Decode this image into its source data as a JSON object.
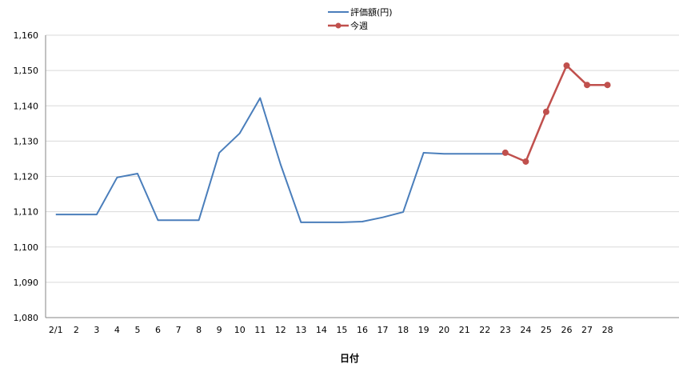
{
  "chart_data": {
    "type": "line",
    "title": "",
    "xlabel": "日付",
    "ylabel": "",
    "ylim": [
      1080,
      1160
    ],
    "ytick_step": 10,
    "grid": "horizontal",
    "legend_placement": "top-center",
    "categories": [
      "2/1",
      "2",
      "3",
      "4",
      "5",
      "6",
      "7",
      "8",
      "9",
      "10",
      "11",
      "12",
      "13",
      "14",
      "15",
      "16",
      "17",
      "18",
      "19",
      "20",
      "21",
      "22",
      "23",
      "24",
      "25",
      "26",
      "27",
      "28"
    ],
    "category_slots": 31,
    "series": [
      {
        "name": "評価額(円)",
        "color": "#4a7ebb",
        "markers": false,
        "values": [
          1109.2,
          1109.2,
          1109.2,
          1119.7,
          1120.8,
          1107.6,
          1107.6,
          1107.6,
          1126.7,
          1132.2,
          1142.2,
          1123.4,
          1107.0,
          1107.0,
          1107.0,
          1107.2,
          1108.4,
          1109.9,
          1126.7,
          1126.4,
          1126.4,
          1126.4,
          1126.4,
          null,
          null,
          null,
          null,
          null
        ]
      },
      {
        "name": "今週",
        "color": "#c0504d",
        "markers": true,
        "values": [
          null,
          null,
          null,
          null,
          null,
          null,
          null,
          null,
          null,
          null,
          null,
          null,
          null,
          null,
          null,
          null,
          null,
          null,
          null,
          null,
          null,
          null,
          1126.7,
          1124.2,
          1138.3,
          1151.4,
          1145.9,
          1145.9
        ]
      }
    ]
  }
}
